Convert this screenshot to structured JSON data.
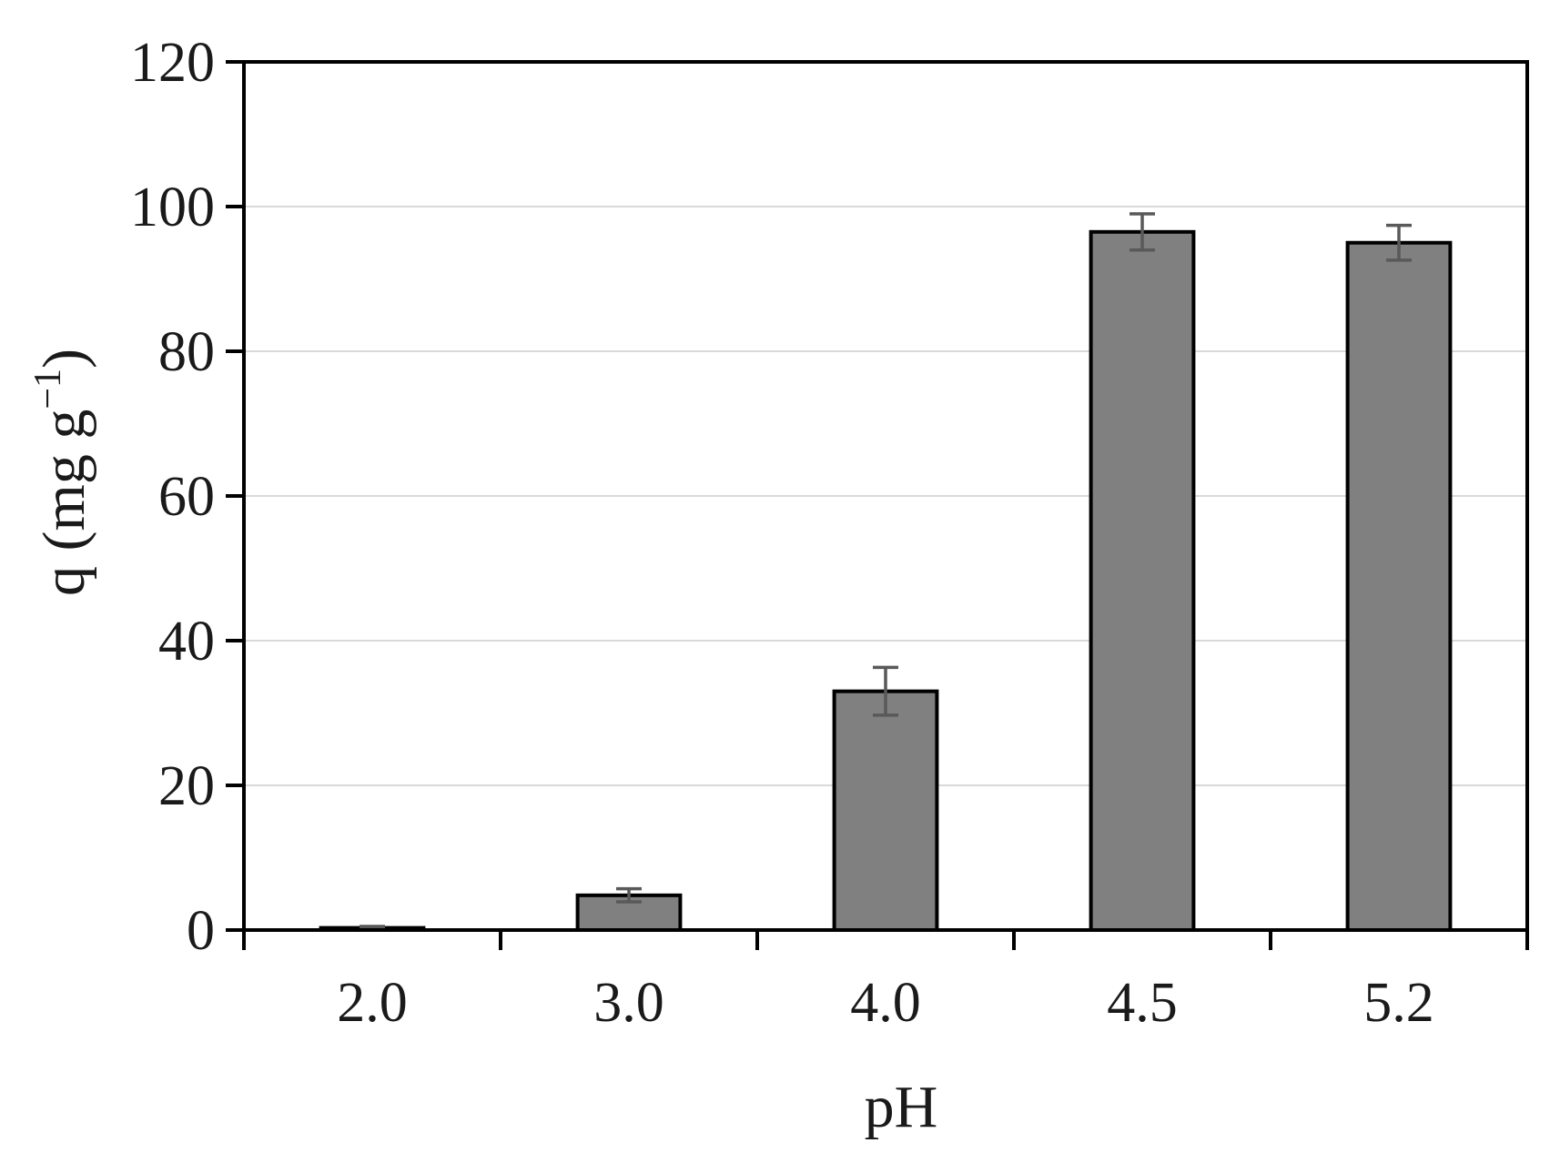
{
  "chart_data": {
    "type": "bar",
    "title": "",
    "xlabel": "pH",
    "ylabel": {
      "prefix": "q (mg g",
      "superscript": "−1",
      "suffix": ")"
    },
    "categories": [
      "2.0",
      "3.0",
      "4.0",
      "4.5",
      "5.2"
    ],
    "values": [
      0.3,
      4.8,
      33.0,
      96.5,
      95.0
    ],
    "error": [
      0.2,
      0.9,
      3.3,
      2.5,
      2.4
    ],
    "ylim": [
      0,
      120
    ],
    "yticks": [
      0,
      20,
      40,
      60,
      80,
      100,
      120
    ],
    "ytick_labels": [
      "0",
      "20",
      "40",
      "60",
      "80",
      "100",
      "120"
    ],
    "grid": "horizontal",
    "legend": "none",
    "colors": {
      "bar_fill": "#808080",
      "bar_edge": "#000000",
      "error_bar": "#595959",
      "grid": "#d9d9d9",
      "axis": "#000000"
    }
  }
}
